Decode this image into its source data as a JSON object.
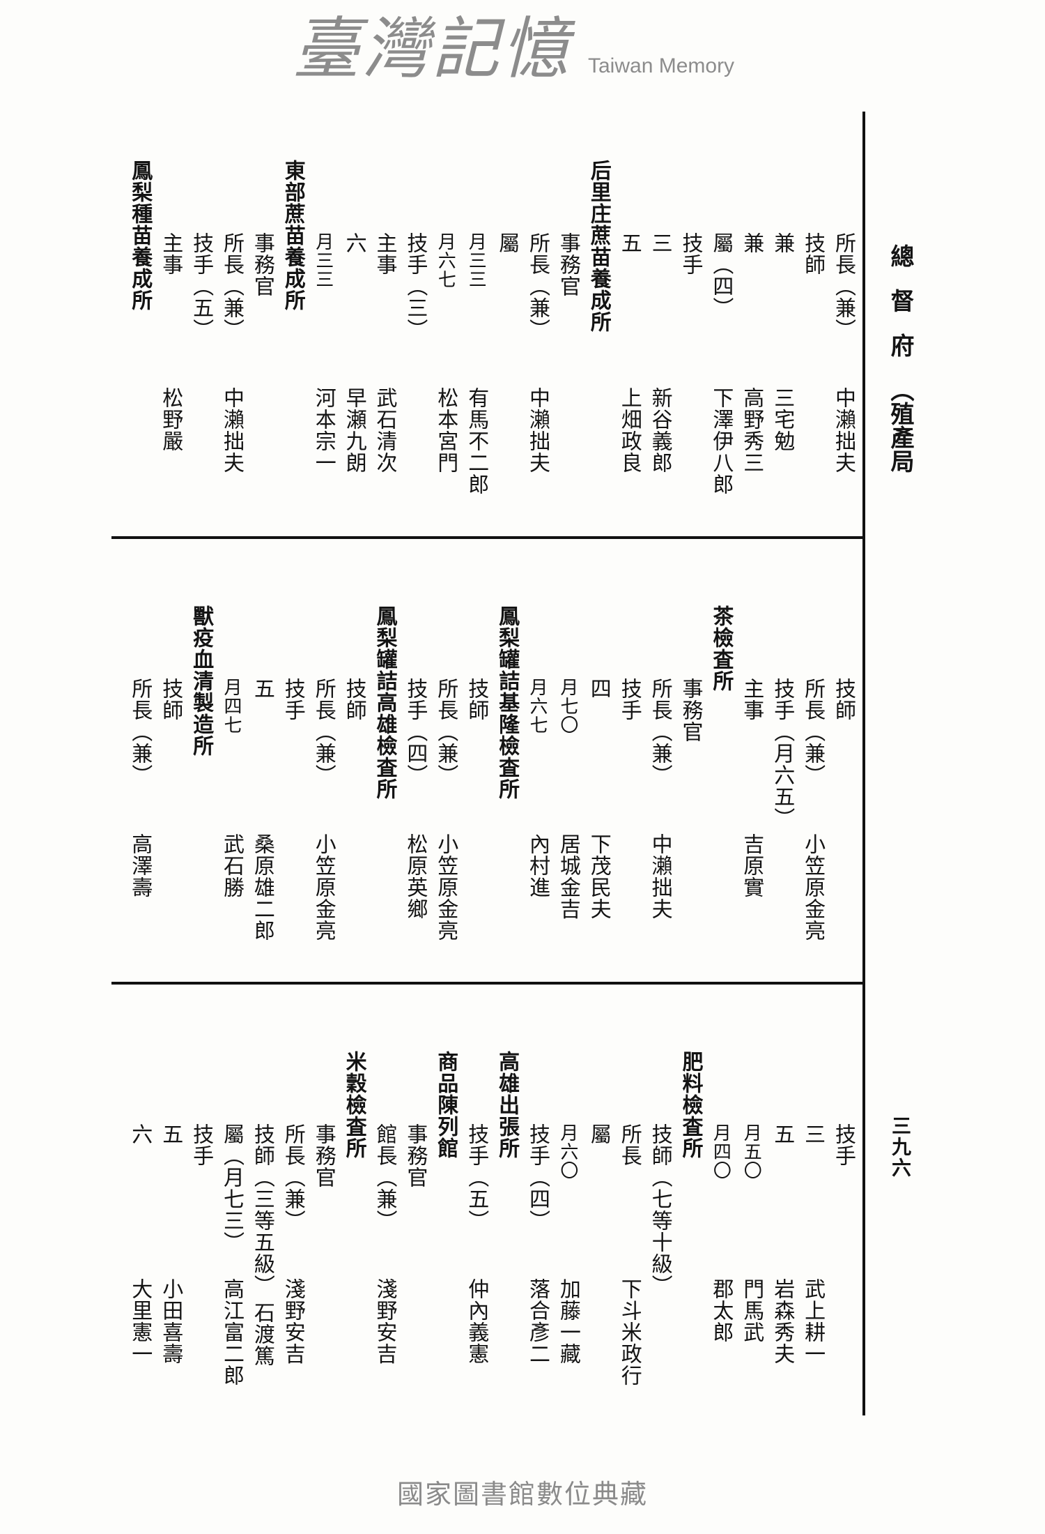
{
  "header": {
    "title": "總督府",
    "bureau": "（殖產局",
    "page_number": "三九六"
  },
  "watermark": {
    "chinese": "臺灣記憶",
    "english": "Taiwan Memory"
  },
  "footer": {
    "text": "國家圖書館數位典藏"
  },
  "sections": [
    {
      "columns": [
        {
          "t": "所長（兼）",
          "n": "中瀨拙夫"
        },
        {
          "t": "技師"
        },
        {
          "t": "兼",
          "n": "三宅勉"
        },
        {
          "t": "兼",
          "n": "高野秀三"
        },
        {
          "t": "屬（四）",
          "n": "下澤伊八郎"
        },
        {
          "t": "技手"
        },
        {
          "t": "三",
          "n": "新谷義郎"
        },
        {
          "t": "五",
          "n": "上畑政良"
        },
        {
          "h": "后里庄蔗苗養成所"
        },
        {
          "t": "事務官"
        },
        {
          "t": "所長（兼）",
          "n": "中瀨拙夫"
        },
        {
          "t": "屬"
        },
        {
          "t": "月三三",
          "n": "有馬不二郎"
        },
        {
          "t": "月六七",
          "n": "松本宮門"
        },
        {
          "t": "技手（三）"
        },
        {
          "t": "主事",
          "n": "武石清次"
        },
        {
          "t": "六",
          "n": "早瀬九朗"
        },
        {
          "t": "月三三",
          "n": "河本宗一"
        },
        {
          "h": "東部蔗苗養成所"
        },
        {
          "t": "事務官"
        },
        {
          "t": "所長（兼）",
          "n": "中瀨拙夫"
        },
        {
          "t": "技手（五）"
        },
        {
          "t": "主事",
          "n": "松野嚴"
        },
        {
          "h": "鳳梨種苗養成所"
        }
      ]
    },
    {
      "columns": [
        {
          "t": "技師"
        },
        {
          "t": "所長（兼）",
          "n": "小笠原金亮"
        },
        {
          "t": "技手（月六五）"
        },
        {
          "t": "主事",
          "n": "吉原實"
        },
        {
          "h": "茶檢査所"
        },
        {
          "t": "事務官"
        },
        {
          "t": "所長（兼）",
          "n": "中瀨拙夫"
        },
        {
          "t": "技手"
        },
        {
          "t": "四",
          "n": "下茂民夫"
        },
        {
          "t": "月七〇",
          "n": "居城金吉"
        },
        {
          "t": "月六七",
          "n": "內村進"
        },
        {
          "h": "鳳梨罐詰基隆檢査所"
        },
        {
          "t": "技師"
        },
        {
          "t": "所長（兼）",
          "n": "小笠原金亮"
        },
        {
          "t": "技手（四）",
          "n": "松原英鄉"
        },
        {
          "h": "鳳梨罐詰高雄檢査所"
        },
        {
          "t": "技師"
        },
        {
          "t": "所長（兼）",
          "n": "小笠原金亮"
        },
        {
          "t": "技手"
        },
        {
          "t": "五",
          "n": "桑原雄二郎"
        },
        {
          "t": "月四七",
          "n": "武石勝"
        },
        {
          "h": "獸疫血清製造所"
        },
        {
          "t": "技師"
        },
        {
          "t": "所長（兼）",
          "n": "高澤壽"
        }
      ]
    },
    {
      "columns": [
        {
          "t": "技手"
        },
        {
          "t": "三",
          "n": "武上耕一"
        },
        {
          "t": "五",
          "n": "岩森秀夫"
        },
        {
          "t": "月五〇",
          "n": "門馬武"
        },
        {
          "t": "月四〇",
          "n": "郡太郎"
        },
        {
          "h": "肥料檢査所"
        },
        {
          "t": "技師（七等十級）"
        },
        {
          "t": "所長",
          "n": "下斗米政行"
        },
        {
          "t": "屬"
        },
        {
          "t": "月六〇",
          "n": "加藤一藏"
        },
        {
          "t": "技手（四）",
          "n": "落合彥二"
        },
        {
          "h": "高雄出張所"
        },
        {
          "t": "技手（五）",
          "n": "仲內義憲"
        },
        {
          "h": "商品陳列館"
        },
        {
          "t": "事務官"
        },
        {
          "t": "館長（兼）",
          "n": "淺野安吉"
        },
        {
          "h": "米穀檢査所"
        },
        {
          "t": "事務官"
        },
        {
          "t": "所長（兼）",
          "n": "淺野安吉"
        },
        {
          "t": "技師（三等五級）",
          "n": "石渡篤"
        },
        {
          "t": "屬（月七三）",
          "n": "高江富二郎"
        },
        {
          "t": "技手"
        },
        {
          "t": "五",
          "n": "小田喜壽"
        },
        {
          "t": "六",
          "n": "大里憲一"
        }
      ]
    }
  ]
}
